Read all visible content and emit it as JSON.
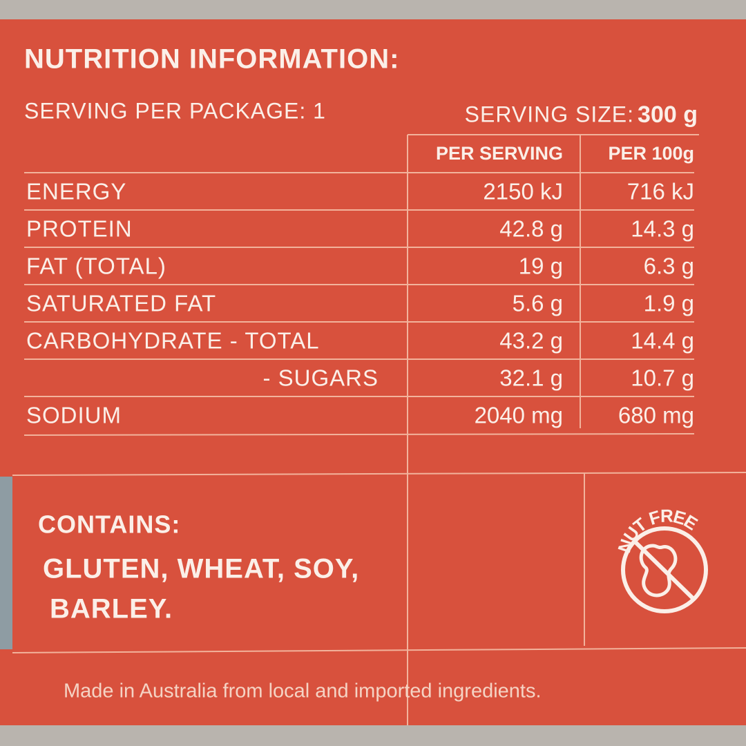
{
  "header": {
    "title": "NUTRITION INFORMATION:",
    "serving_per_package": "SERVING PER PACKAGE: 1",
    "serving_size_label": "SERVING SIZE:",
    "serving_size_value": "300 g"
  },
  "table": {
    "columns": [
      "PER SERVING",
      "PER 100g"
    ],
    "rows": [
      [
        "ENERGY",
        "2150 kJ",
        "716 kJ"
      ],
      [
        "PROTEIN",
        "42.8 g",
        "14.3 g"
      ],
      [
        "FAT (TOTAL)",
        "19 g",
        "6.3 g"
      ],
      [
        "SATURATED FAT",
        "5.6 g",
        "1.9 g"
      ],
      [
        "CARBOHYDRATE - TOTAL",
        "43.2 g",
        "14.4 g"
      ],
      [
        "- SUGARS",
        "32.1 g",
        "10.7 g"
      ],
      [
        "SODIUM",
        "2040 mg",
        "680 mg"
      ]
    ]
  },
  "allergens": {
    "heading": "CONTAINS:",
    "lines": [
      "GLUTEN, WHEAT, SOY,",
      "BARLEY."
    ]
  },
  "badge": {
    "label": "NUT FREE"
  },
  "footer": {
    "text": "Made in Australia from local and imported ingredients."
  }
}
